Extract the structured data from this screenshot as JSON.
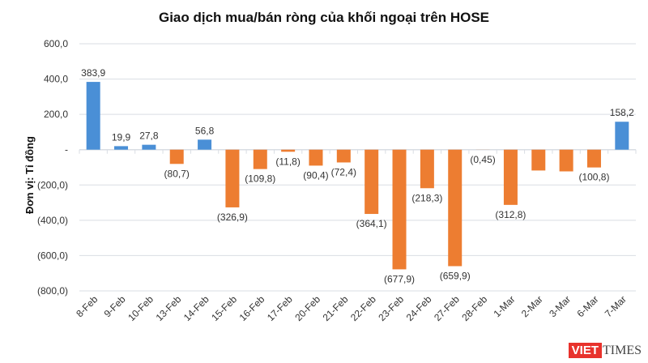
{
  "chart_data": {
    "type": "bar",
    "title": "Giao dịch mua/bán ròng của khối ngoại trên HOSE",
    "ylabel": "Đơn vị: Tỉ đồng",
    "xlabel": "",
    "ylim": [
      -800,
      600
    ],
    "yticks": [
      600,
      400,
      200,
      0,
      -200,
      -400,
      -600,
      -800
    ],
    "ytick_labels": [
      "600,0",
      "400,0",
      "200,0",
      "-",
      "(200,0)",
      "(400,0)",
      "(600,0)",
      "(800,0)"
    ],
    "grid": true,
    "categories": [
      "8-Feb",
      "9-Feb",
      "10-Feb",
      "13-Feb",
      "14-Feb",
      "15-Feb",
      "16-Feb",
      "17-Feb",
      "20-Feb",
      "21-Feb",
      "22-Feb",
      "23-Feb",
      "24-Feb",
      "27-Feb",
      "28-Feb",
      "1-Mar",
      "2-Mar",
      "3-Mar",
      "6-Mar",
      "7-Mar"
    ],
    "values": [
      383.9,
      19.9,
      27.8,
      -80.7,
      56.8,
      -326.9,
      -109.8,
      -11.8,
      -90.4,
      -72.4,
      -364.1,
      -677.9,
      -218.3,
      -659.9,
      -0.45,
      -312.8,
      -118,
      -123,
      -100.8,
      158.2
    ],
    "labels": [
      "383,9",
      "19,9",
      "27,8",
      "(80,7)",
      "56,8",
      "(326,9)",
      "(109,8)",
      "(11,8)",
      "(90,4)",
      "(72,4)",
      "(364,1)",
      "(677,9)",
      "(218,3)",
      "(659,9)",
      "(0,45)",
      "(312,8)",
      "",
      "",
      "(100,8)",
      "158,2"
    ],
    "colors": {
      "positive": "#4a8fd6",
      "negative": "#ed7d31",
      "grid": "#d9dde3"
    }
  },
  "logo": {
    "part1": "VIET",
    "part2": "TIMES"
  }
}
